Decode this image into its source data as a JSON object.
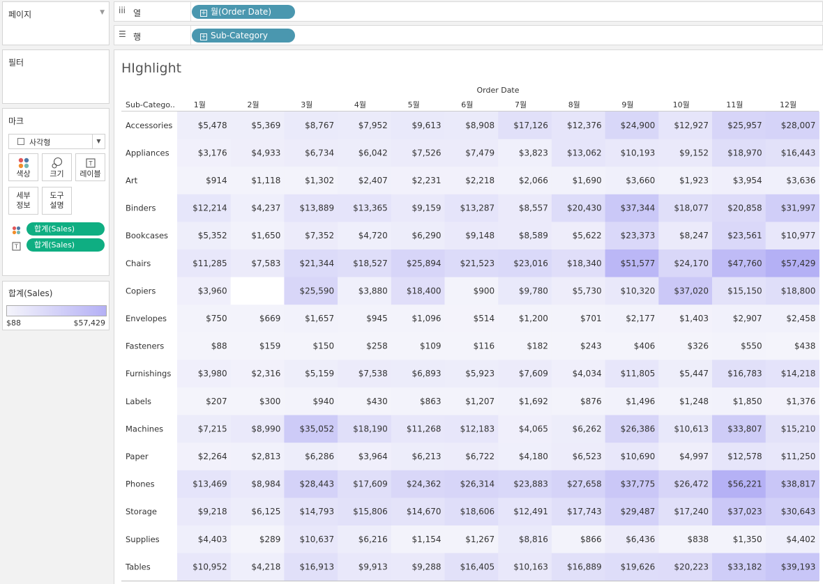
{
  "pages": {
    "title": "페이지"
  },
  "filters": {
    "title": "필터"
  },
  "marks": {
    "title": "마크",
    "mark_type": "사각형",
    "buttons": {
      "color": "색상",
      "size": "크기",
      "label": "레이블",
      "detail": [
        "세부",
        "정보"
      ],
      "tooltip": [
        "도구",
        "설명"
      ]
    },
    "pills": [
      "합계(Sales)",
      "합계(Sales)"
    ]
  },
  "legend": {
    "title": "합계(Sales)",
    "min": "$88",
    "max": "$57,429",
    "color_min": "#f4f4fb",
    "color_max": "#b4b0f5"
  },
  "columns_shelf": {
    "label": "열",
    "pill": "월(Order Date)"
  },
  "rows_shelf": {
    "label": "행",
    "pill": "Sub-Category"
  },
  "viz": {
    "title": "HIghlight",
    "axis_title": "Order Date",
    "row_header": "Sub-Catego.."
  },
  "chart_data": {
    "type": "heatmap",
    "columns": [
      "1월",
      "2월",
      "3월",
      "4월",
      "5월",
      "6월",
      "7월",
      "8월",
      "9월",
      "10월",
      "11월",
      "12월"
    ],
    "rows": [
      {
        "name": "Accessories",
        "values": [
          5478,
          5369,
          8767,
          7952,
          9613,
          8908,
          17126,
          12376,
          24900,
          12927,
          25957,
          28007
        ]
      },
      {
        "name": "Appliances",
        "values": [
          3176,
          4933,
          6734,
          6042,
          7526,
          7479,
          3823,
          13062,
          10193,
          9152,
          18970,
          16443
        ]
      },
      {
        "name": "Art",
        "values": [
          914,
          1118,
          1302,
          2407,
          2231,
          2218,
          2066,
          1690,
          3660,
          1923,
          3954,
          3636
        ]
      },
      {
        "name": "Binders",
        "values": [
          12214,
          4237,
          13889,
          13365,
          9159,
          13287,
          8557,
          20430,
          37344,
          18077,
          20858,
          31997
        ]
      },
      {
        "name": "Bookcases",
        "values": [
          5352,
          1650,
          7352,
          4720,
          6290,
          9148,
          8589,
          5622,
          23373,
          8247,
          23561,
          10977
        ]
      },
      {
        "name": "Chairs",
        "values": [
          11285,
          7583,
          21344,
          18527,
          25894,
          21523,
          23016,
          18340,
          51577,
          24170,
          47760,
          57429
        ]
      },
      {
        "name": "Copiers",
        "values": [
          3960,
          null,
          25590,
          3880,
          18400,
          900,
          9780,
          5730,
          10320,
          37020,
          15150,
          18800
        ]
      },
      {
        "name": "Envelopes",
        "values": [
          750,
          669,
          1657,
          945,
          1096,
          514,
          1200,
          701,
          2177,
          1403,
          2907,
          2458
        ]
      },
      {
        "name": "Fasteners",
        "values": [
          88,
          159,
          150,
          258,
          109,
          116,
          182,
          243,
          406,
          326,
          550,
          438
        ]
      },
      {
        "name": "Furnishings",
        "values": [
          3980,
          2316,
          5159,
          7538,
          6893,
          5923,
          7609,
          4034,
          11805,
          5447,
          16783,
          14218
        ]
      },
      {
        "name": "Labels",
        "values": [
          207,
          300,
          940,
          430,
          863,
          1207,
          1692,
          876,
          1496,
          1248,
          1850,
          1376
        ]
      },
      {
        "name": "Machines",
        "values": [
          7215,
          8990,
          35052,
          18190,
          11268,
          12183,
          4065,
          6262,
          26386,
          10613,
          33807,
          15210
        ]
      },
      {
        "name": "Paper",
        "values": [
          2264,
          2813,
          6286,
          3964,
          6213,
          6722,
          4180,
          6523,
          10690,
          4997,
          12578,
          11250
        ]
      },
      {
        "name": "Phones",
        "values": [
          13469,
          8984,
          28443,
          17609,
          24362,
          26314,
          23883,
          27658,
          37775,
          26472,
          56221,
          38817
        ]
      },
      {
        "name": "Storage",
        "values": [
          9218,
          6125,
          14793,
          15806,
          14670,
          18606,
          12491,
          17743,
          29487,
          17240,
          37023,
          30643
        ]
      },
      {
        "name": "Supplies",
        "values": [
          4403,
          289,
          10637,
          6216,
          1154,
          1267,
          8816,
          866,
          6436,
          838,
          1350,
          4402
        ]
      },
      {
        "name": "Tables",
        "values": [
          10952,
          4218,
          16913,
          9913,
          9288,
          16405,
          10163,
          16889,
          19626,
          20223,
          33182,
          39193
        ]
      }
    ],
    "min": 88,
    "max": 57429,
    "color_low": "#f4f4fb",
    "color_high": "#b4b0f5"
  }
}
